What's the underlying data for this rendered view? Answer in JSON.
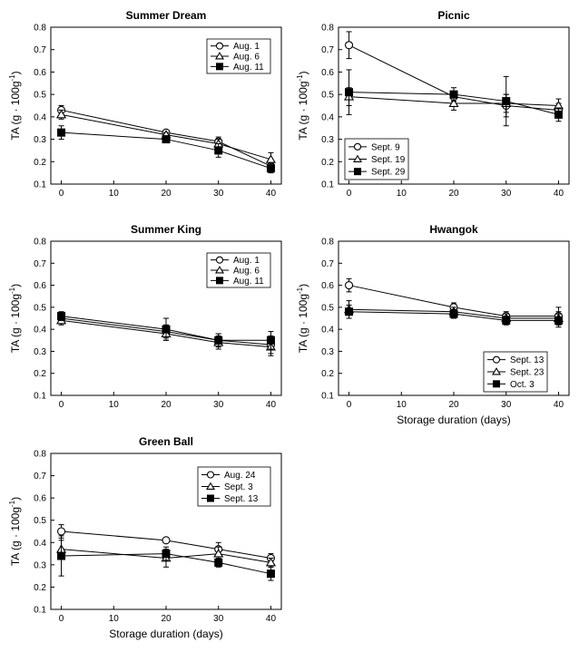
{
  "chart_data": [
    {
      "type": "line",
      "title": "Summer Dream",
      "xlabel": "",
      "ylabel": "TA (g · 100g⁻¹)",
      "ylabel_main": "TA (g · 100g",
      "ylabel_sup": "-1",
      "ylabel_close": ")",
      "x": [
        0,
        20,
        30,
        40
      ],
      "xlim": [
        -2,
        42
      ],
      "ylim": [
        0.1,
        0.8
      ],
      "xticks": [
        0,
        10,
        20,
        30,
        40
      ],
      "yticks": [
        0.1,
        0.2,
        0.3,
        0.4,
        0.5,
        0.6,
        0.7,
        0.8
      ],
      "legend_position": "top-right",
      "series": [
        {
          "name": "Aug. 1",
          "marker": "circle",
          "values": [
            0.43,
            0.33,
            0.29,
            0.18
          ],
          "err": [
            0.02,
            0.01,
            0.02,
            0.02
          ]
        },
        {
          "name": "Aug. 6",
          "marker": "triangle",
          "values": [
            0.41,
            0.32,
            0.28,
            0.21
          ],
          "err": [
            0.02,
            0.01,
            0.02,
            0.03
          ]
        },
        {
          "name": "Aug. 11",
          "marker": "square",
          "values": [
            0.33,
            0.3,
            0.25,
            0.17
          ],
          "err": [
            0.03,
            0.01,
            0.03,
            0.02
          ]
        }
      ]
    },
    {
      "type": "line",
      "title": "Picnic",
      "xlabel": "",
      "ylabel": "TA (g · 100g⁻¹)",
      "ylabel_main": "TA (g · 100g",
      "ylabel_sup": "-1",
      "ylabel_close": ")",
      "x": [
        0,
        20,
        30,
        40
      ],
      "xlim": [
        -2,
        42
      ],
      "ylim": [
        0.1,
        0.8
      ],
      "xticks": [
        0,
        10,
        20,
        30,
        40
      ],
      "yticks": [
        0.1,
        0.2,
        0.3,
        0.4,
        0.5,
        0.6,
        0.7,
        0.8
      ],
      "legend_position": "bottom-left",
      "series": [
        {
          "name": "Sept. 9",
          "marker": "circle",
          "values": [
            0.72,
            0.49,
            0.45,
            0.43
          ],
          "err": [
            0.06,
            0.02,
            0.05,
            0.03
          ]
        },
        {
          "name": "Sept. 19",
          "marker": "triangle",
          "values": [
            0.49,
            0.46,
            0.46,
            0.45
          ],
          "err": [
            0.04,
            0.03,
            0.04,
            0.03
          ]
        },
        {
          "name": "Sept. 29",
          "marker": "square",
          "values": [
            0.51,
            0.5,
            0.47,
            0.41
          ],
          "err": [
            0.1,
            0.03,
            0.11,
            0.03
          ]
        }
      ]
    },
    {
      "type": "line",
      "title": "Summer King",
      "xlabel": "",
      "ylabel": "TA (g · 100g⁻¹)",
      "ylabel_main": "TA (g · 100g",
      "ylabel_sup": "-1",
      "ylabel_close": ")",
      "x": [
        0,
        20,
        30,
        40
      ],
      "xlim": [
        -2,
        42
      ],
      "ylim": [
        0.1,
        0.8
      ],
      "xticks": [
        0,
        10,
        20,
        30,
        40
      ],
      "yticks": [
        0.1,
        0.2,
        0.3,
        0.4,
        0.5,
        0.6,
        0.7,
        0.8
      ],
      "legend_position": "top-right",
      "series": [
        {
          "name": "Aug. 1",
          "marker": "circle",
          "values": [
            0.45,
            0.39,
            0.35,
            0.33
          ],
          "err": [
            0.02,
            0.03,
            0.03,
            0.04
          ]
        },
        {
          "name": "Aug. 6",
          "marker": "triangle",
          "values": [
            0.44,
            0.38,
            0.34,
            0.32
          ],
          "err": [
            0.02,
            0.03,
            0.03,
            0.04
          ]
        },
        {
          "name": "Aug. 11",
          "marker": "square",
          "values": [
            0.46,
            0.4,
            0.35,
            0.35
          ],
          "err": [
            0.02,
            0.05,
            0.03,
            0.04
          ]
        }
      ]
    },
    {
      "type": "line",
      "title": "Hwangok",
      "xlabel": "Storage duration (days)",
      "ylabel": "TA (g · 100g⁻¹)",
      "ylabel_main": "TA (g · 100g",
      "ylabel_sup": "-1",
      "ylabel_close": ")",
      "x": [
        0,
        20,
        30,
        40
      ],
      "xlim": [
        -2,
        42
      ],
      "ylim": [
        0.1,
        0.8
      ],
      "xticks": [
        0,
        10,
        20,
        30,
        40
      ],
      "yticks": [
        0.1,
        0.2,
        0.3,
        0.4,
        0.5,
        0.6,
        0.7,
        0.8
      ],
      "legend_position": "bottom-right",
      "series": [
        {
          "name": "Sept. 13",
          "marker": "circle",
          "values": [
            0.6,
            0.5,
            0.46,
            0.46
          ],
          "err": [
            0.03,
            0.02,
            0.02,
            0.04
          ]
        },
        {
          "name": "Sept. 23",
          "marker": "triangle",
          "values": [
            0.49,
            0.48,
            0.45,
            0.45
          ],
          "err": [
            0.04,
            0.02,
            0.02,
            0.03
          ]
        },
        {
          "name": "Oct. 3",
          "marker": "square",
          "values": [
            0.48,
            0.47,
            0.44,
            0.44
          ],
          "err": [
            0.03,
            0.02,
            0.02,
            0.03
          ]
        }
      ]
    },
    {
      "type": "line",
      "title": "Green Ball",
      "xlabel": "Storage duration (days)",
      "ylabel": "TA (g · 100g⁻¹)",
      "ylabel_main": "TA (g · 100g",
      "ylabel_sup": "-1",
      "ylabel_close": ")",
      "x": [
        0,
        20,
        30,
        40
      ],
      "xlim": [
        -2,
        42
      ],
      "ylim": [
        0.1,
        0.8
      ],
      "xticks": [
        0,
        10,
        20,
        30,
        40
      ],
      "yticks": [
        0.1,
        0.2,
        0.3,
        0.4,
        0.5,
        0.6,
        0.7,
        0.8
      ],
      "legend_position": "top-right",
      "series": [
        {
          "name": "Aug. 24",
          "marker": "circle",
          "values": [
            0.45,
            0.41,
            0.37,
            0.33
          ],
          "err": [
            0.03,
            0.01,
            0.03,
            0.02
          ]
        },
        {
          "name": "Sept. 3",
          "marker": "triangle",
          "values": [
            0.37,
            0.33,
            0.35,
            0.31
          ],
          "err": [
            0.04,
            0.04,
            0.03,
            0.02
          ]
        },
        {
          "name": "Sept. 13",
          "marker": "square",
          "values": [
            0.34,
            0.35,
            0.31,
            0.26
          ],
          "err": [
            0.09,
            0.03,
            0.02,
            0.03
          ]
        }
      ]
    }
  ]
}
